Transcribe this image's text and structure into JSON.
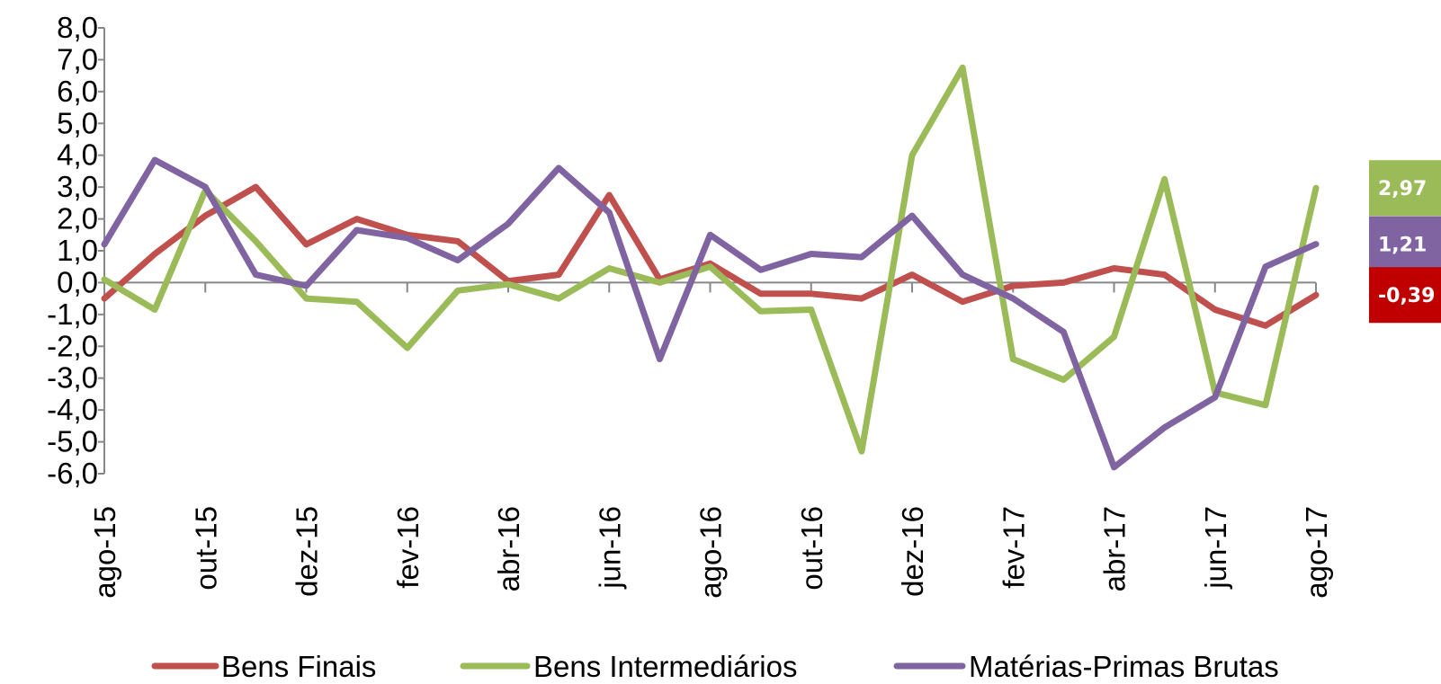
{
  "chart_data": {
    "type": "line",
    "title": "",
    "xlabel": "",
    "ylabel": "",
    "ylim": [
      -6.0,
      8.0
    ],
    "y_ticks": [
      "8,0",
      "7,0",
      "6,0",
      "5,0",
      "4,0",
      "3,0",
      "2,0",
      "1,0",
      "0,0",
      "-1,0",
      "-2,0",
      "-3,0",
      "-4,0",
      "-5,0",
      "-6,0"
    ],
    "categories": [
      "ago-15",
      "set-15",
      "out-15",
      "nov-15",
      "dez-15",
      "jan-16",
      "fev-16",
      "mar-16",
      "abr-16",
      "mai-16",
      "jun-16",
      "jul-16",
      "ago-16",
      "set-16",
      "out-16",
      "nov-16",
      "dez-16",
      "jan-17",
      "fev-17",
      "mar-17",
      "abr-17",
      "mai-17",
      "jun-17",
      "jul-17",
      "ago-17"
    ],
    "x_tick_labels": [
      "ago-15",
      "",
      "out-15",
      "",
      "dez-15",
      "",
      "fev-16",
      "",
      "abr-16",
      "",
      "jun-16",
      "",
      "ago-16",
      "",
      "out-16",
      "",
      "dez-16",
      "",
      "fev-17",
      "",
      "abr-17",
      "",
      "jun-17",
      "",
      "ago-17"
    ],
    "grid": false,
    "legend_position": "bottom",
    "series": [
      {
        "name": "Bens Finais",
        "color": "#C0504D",
        "values": [
          -0.5,
          0.9,
          2.1,
          3.0,
          1.2,
          2.0,
          1.5,
          1.3,
          0.05,
          0.25,
          2.75,
          0.1,
          0.6,
          -0.35,
          -0.35,
          -0.5,
          0.25,
          -0.6,
          -0.1,
          0.0,
          0.45,
          0.25,
          -0.85,
          -1.35,
          -0.39
        ]
      },
      {
        "name": "Bens Intermediários",
        "color": "#9BBB59",
        "values": [
          0.1,
          -0.85,
          2.9,
          1.3,
          -0.5,
          -0.6,
          -2.05,
          -0.25,
          -0.05,
          -0.5,
          0.45,
          0.0,
          0.5,
          -0.9,
          -0.85,
          -5.3,
          4.0,
          6.75,
          -2.4,
          -3.05,
          -1.7,
          3.25,
          -3.45,
          -3.85,
          2.97
        ]
      },
      {
        "name": "Matérias-Primas Brutas",
        "color": "#8064A2",
        "values": [
          1.2,
          3.85,
          3.0,
          0.25,
          -0.1,
          1.65,
          1.4,
          0.7,
          1.85,
          3.6,
          2.2,
          -2.4,
          1.5,
          0.4,
          0.9,
          0.8,
          2.1,
          0.25,
          -0.5,
          -1.55,
          -5.8,
          -4.55,
          -3.6,
          0.5,
          1.21
        ]
      }
    ],
    "end_labels": [
      {
        "text": "2,97",
        "value": 2.97,
        "color": "#9BBB59"
      },
      {
        "text": "1,21",
        "value": 1.21,
        "color": "#8064A2"
      },
      {
        "text": "-0,39",
        "value": -0.39,
        "color": "#C00000"
      }
    ]
  }
}
